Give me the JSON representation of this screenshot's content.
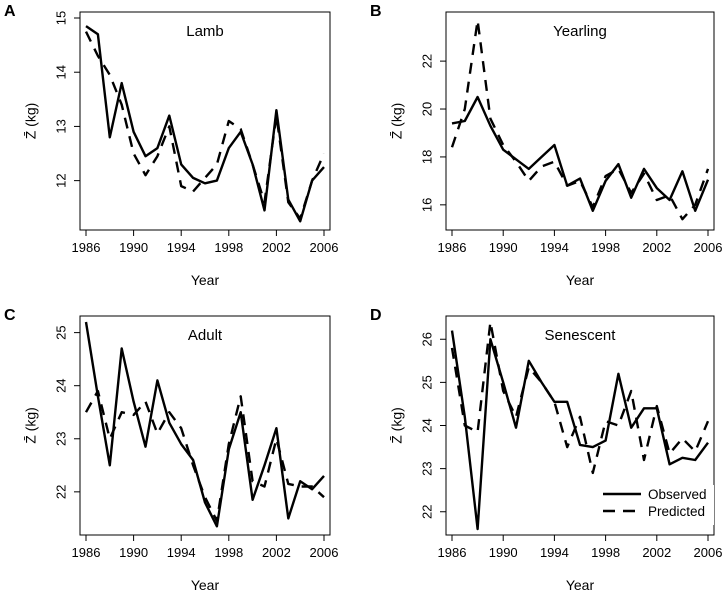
{
  "figure": {
    "legend": {
      "observed_label": "Observed",
      "predicted_label": "Predicted"
    }
  },
  "chart_data": [
    {
      "type": "line",
      "panel": "A",
      "title": "Lamb",
      "xlabel": "Year",
      "ylabel": "Z̄ (kg)",
      "xlim": [
        1986,
        2006
      ],
      "ylim": [
        11.2,
        15
      ],
      "xticks": [
        1986,
        1990,
        1994,
        1998,
        2002,
        2006
      ],
      "yticks": [
        12,
        13,
        14,
        15
      ],
      "legend": "none",
      "x": [
        1986,
        1987,
        1988,
        1989,
        1990,
        1991,
        1992,
        1993,
        1994,
        1995,
        1996,
        1997,
        1998,
        1999,
        2000,
        2001,
        2002,
        2003,
        2004,
        2005,
        2006
      ],
      "series": [
        {
          "name": "Observed",
          "values": [
            14.85,
            14.7,
            12.8,
            13.8,
            12.9,
            12.45,
            12.6,
            13.2,
            12.3,
            12.05,
            11.95,
            12.0,
            12.6,
            12.9,
            12.3,
            11.45,
            13.3,
            11.65,
            11.25,
            12.0,
            12.25
          ]
        },
        {
          "name": "Predicted",
          "values": [
            14.75,
            14.3,
            13.95,
            13.4,
            12.5,
            12.1,
            12.45,
            13.0,
            11.9,
            11.8,
            12.05,
            12.3,
            13.1,
            12.95,
            12.3,
            11.6,
            13.2,
            11.6,
            11.3,
            12.0,
            12.5
          ]
        }
      ]
    },
    {
      "type": "line",
      "panel": "B",
      "title": "Yearling",
      "xlabel": "Year",
      "ylabel": "Z̄ (kg)",
      "xlim": [
        1986,
        2006
      ],
      "ylim": [
        15.2,
        23.8
      ],
      "xticks": [
        1986,
        1990,
        1994,
        1998,
        2002,
        2006
      ],
      "yticks": [
        16,
        18,
        20,
        22
      ],
      "legend": "none",
      "x": [
        1986,
        1987,
        1988,
        1989,
        1990,
        1991,
        1992,
        1993,
        1994,
        1995,
        1996,
        1997,
        1998,
        1999,
        2000,
        2001,
        2002,
        2003,
        2004,
        2005,
        2006
      ],
      "series": [
        {
          "name": "Observed",
          "values": [
            19.4,
            19.5,
            20.5,
            19.3,
            18.3,
            17.9,
            17.5,
            18.0,
            18.5,
            16.8,
            17.1,
            15.75,
            17.0,
            17.7,
            16.3,
            17.5,
            16.7,
            16.2,
            17.4,
            15.75,
            17.05
          ]
        },
        {
          "name": "Predicted",
          "values": [
            18.4,
            20.0,
            23.7,
            19.6,
            18.5,
            17.8,
            17.0,
            17.6,
            17.8,
            16.8,
            17.0,
            15.9,
            17.2,
            17.5,
            16.5,
            17.3,
            16.2,
            16.4,
            15.4,
            16.0,
            17.5
          ]
        }
      ]
    },
    {
      "type": "line",
      "panel": "C",
      "title": "Adult",
      "xlabel": "Year",
      "ylabel": "Z̄ (kg)",
      "xlim": [
        1986,
        2006
      ],
      "ylim": [
        21.3,
        25.2
      ],
      "xticks": [
        1986,
        1990,
        1994,
        1998,
        2002,
        2006
      ],
      "yticks": [
        22,
        23,
        24,
        25
      ],
      "legend": "none",
      "x": [
        1986,
        1987,
        1988,
        1989,
        1990,
        1991,
        1992,
        1993,
        1994,
        1995,
        1996,
        1997,
        1998,
        1999,
        2000,
        2001,
        2002,
        2003,
        2004,
        2005,
        2006
      ],
      "series": [
        {
          "name": "Observed",
          "values": [
            25.2,
            23.8,
            22.5,
            24.7,
            23.7,
            22.85,
            24.1,
            23.3,
            22.9,
            22.6,
            21.8,
            21.35,
            22.8,
            23.5,
            21.85,
            22.5,
            23.2,
            21.5,
            22.2,
            22.05,
            22.3
          ]
        },
        {
          "name": "Predicted",
          "values": [
            23.5,
            23.9,
            23.0,
            23.5,
            23.45,
            23.7,
            23.1,
            23.5,
            23.2,
            22.5,
            21.9,
            21.45,
            22.9,
            23.8,
            22.2,
            22.1,
            23.0,
            22.15,
            22.1,
            22.1,
            21.9
          ]
        }
      ]
    },
    {
      "type": "line",
      "panel": "D",
      "title": "Senescent",
      "xlabel": "Year",
      "ylabel": "Z̄ (kg)",
      "xlim": [
        1986,
        2006
      ],
      "ylim": [
        21.6,
        26.4
      ],
      "xticks": [
        1986,
        1990,
        1994,
        1998,
        2002,
        2006
      ],
      "yticks": [
        22,
        23,
        24,
        25,
        26
      ],
      "legend": "bottom-right",
      "x": [
        1986,
        1987,
        1988,
        1989,
        1990,
        1991,
        1992,
        1993,
        1994,
        1995,
        1996,
        1997,
        1998,
        1999,
        2000,
        2001,
        2002,
        2003,
        2004,
        2005,
        2006
      ],
      "series": [
        {
          "name": "Observed",
          "values": [
            26.2,
            24.2,
            21.6,
            26.0,
            25.0,
            23.95,
            25.5,
            25.0,
            24.55,
            24.55,
            23.55,
            23.5,
            23.65,
            25.2,
            23.95,
            24.4,
            24.4,
            23.1,
            23.25,
            23.2,
            23.6
          ]
        },
        {
          "name": "Predicted",
          "values": [
            25.8,
            24.0,
            23.85,
            26.4,
            24.8,
            24.2,
            25.35,
            25.0,
            24.55,
            23.5,
            24.2,
            22.9,
            24.1,
            24.0,
            24.8,
            23.2,
            24.45,
            23.35,
            23.7,
            23.4,
            24.1
          ]
        }
      ]
    }
  ]
}
